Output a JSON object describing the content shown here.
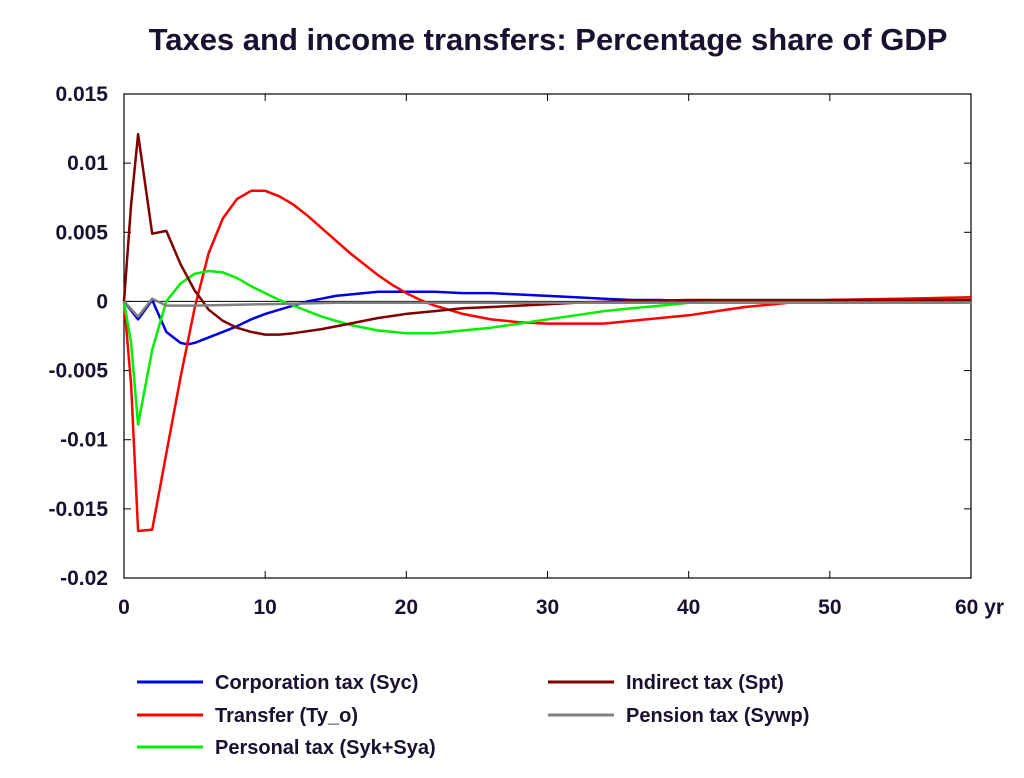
{
  "chart_data": {
    "type": "line",
    "title": "Taxes and income transfers: Percentage share of GDP",
    "xlabel": "",
    "ylabel": "",
    "xlim": [
      0,
      60
    ],
    "ylim": [
      -0.02,
      0.015
    ],
    "x_ticks": [
      {
        "value": 0,
        "label": "0"
      },
      {
        "value": 10,
        "label": "10"
      },
      {
        "value": 20,
        "label": "20"
      },
      {
        "value": 30,
        "label": "30"
      },
      {
        "value": 40,
        "label": "40"
      },
      {
        "value": 50,
        "label": "50"
      },
      {
        "value": 60,
        "label": "60 yr"
      }
    ],
    "y_ticks": [
      {
        "value": 0.015,
        "label": "0.015"
      },
      {
        "value": 0.01,
        "label": "0.01"
      },
      {
        "value": 0.005,
        "label": "0.005"
      },
      {
        "value": 0,
        "label": "0"
      },
      {
        "value": -0.005,
        "label": "-0.005"
      },
      {
        "value": -0.01,
        "label": "-0.01"
      },
      {
        "value": -0.015,
        "label": "-0.015"
      },
      {
        "value": -0.02,
        "label": "-0.02"
      }
    ],
    "grid": false,
    "legend_position": "bottom",
    "series": [
      {
        "name": "Corporation tax (Syc)",
        "color": "#0000e0",
        "points": [
          [
            0,
            0
          ],
          [
            1,
            -0.0013
          ],
          [
            2,
            0.0001
          ],
          [
            3,
            -0.0022
          ],
          [
            4,
            -0.003
          ],
          [
            4.5,
            -0.0031
          ],
          [
            5,
            -0.003
          ],
          [
            6,
            -0.0026
          ],
          [
            7,
            -0.0022
          ],
          [
            8,
            -0.0018
          ],
          [
            9,
            -0.0013
          ],
          [
            10,
            -0.0009
          ],
          [
            11,
            -0.0006
          ],
          [
            12,
            -0.0003
          ],
          [
            13,
            0.0
          ],
          [
            14,
            0.0002
          ],
          [
            15,
            0.0004
          ],
          [
            16,
            0.0005
          ],
          [
            17,
            0.0006
          ],
          [
            18,
            0.0007
          ],
          [
            20,
            0.0007
          ],
          [
            22,
            0.0007
          ],
          [
            24,
            0.0006
          ],
          [
            26,
            0.0006
          ],
          [
            28,
            0.0005
          ],
          [
            30,
            0.0004
          ],
          [
            32,
            0.0003
          ],
          [
            34,
            0.0002
          ],
          [
            36,
            0.0001
          ],
          [
            38,
            0.0001
          ],
          [
            40,
            0.0
          ],
          [
            45,
            0.0
          ],
          [
            50,
            0.0
          ],
          [
            55,
            0.0
          ],
          [
            60,
            0.0
          ]
        ]
      },
      {
        "name": "Transfer (Ty_o)",
        "color": "#ff0000",
        "points": [
          [
            0,
            0
          ],
          [
            0.5,
            -0.006
          ],
          [
            1,
            -0.0166
          ],
          [
            2,
            -0.0165
          ],
          [
            3,
            -0.011
          ],
          [
            4,
            -0.0055
          ],
          [
            5,
            -0.0005
          ],
          [
            6,
            0.0035
          ],
          [
            7,
            0.006
          ],
          [
            8,
            0.0074
          ],
          [
            9,
            0.008
          ],
          [
            10,
            0.008
          ],
          [
            11,
            0.0076
          ],
          [
            12,
            0.007
          ],
          [
            13,
            0.0062
          ],
          [
            14,
            0.0053
          ],
          [
            15,
            0.0044
          ],
          [
            16,
            0.0035
          ],
          [
            17,
            0.0027
          ],
          [
            18,
            0.0019
          ],
          [
            19,
            0.0012
          ],
          [
            20,
            0.0006
          ],
          [
            21,
            0.0001
          ],
          [
            22,
            -0.0003
          ],
          [
            24,
            -0.0009
          ],
          [
            26,
            -0.0013
          ],
          [
            28,
            -0.0015
          ],
          [
            30,
            -0.0016
          ],
          [
            32,
            -0.0016
          ],
          [
            34,
            -0.0016
          ],
          [
            36,
            -0.0014
          ],
          [
            38,
            -0.0012
          ],
          [
            40,
            -0.001
          ],
          [
            42,
            -0.0007
          ],
          [
            44,
            -0.0004
          ],
          [
            46,
            -0.0002
          ],
          [
            48,
            0.0
          ],
          [
            50,
            0.0001
          ],
          [
            55,
            0.0002
          ],
          [
            60,
            0.0003
          ]
        ]
      },
      {
        "name": "Personal tax (Syk+Sya)",
        "color": "#00ee00",
        "points": [
          [
            0,
            0
          ],
          [
            0.5,
            -0.003
          ],
          [
            1,
            -0.0089
          ],
          [
            2,
            -0.0035
          ],
          [
            3,
            0.0
          ],
          [
            4,
            0.0013
          ],
          [
            5,
            0.002
          ],
          [
            6,
            0.0022
          ],
          [
            7,
            0.0021
          ],
          [
            8,
            0.0017
          ],
          [
            9,
            0.0011
          ],
          [
            10,
            0.0006
          ],
          [
            11,
            0.0001
          ],
          [
            12,
            -0.0003
          ],
          [
            14,
            -0.0011
          ],
          [
            16,
            -0.0017
          ],
          [
            18,
            -0.0021
          ],
          [
            20,
            -0.0023
          ],
          [
            22,
            -0.0023
          ],
          [
            24,
            -0.0021
          ],
          [
            26,
            -0.0019
          ],
          [
            28,
            -0.0016
          ],
          [
            30,
            -0.0013
          ],
          [
            32,
            -0.001
          ],
          [
            34,
            -0.0007
          ],
          [
            36,
            -0.0005
          ],
          [
            38,
            -0.0003
          ],
          [
            40,
            -0.0001
          ],
          [
            45,
            0.0
          ],
          [
            50,
            0.0
          ],
          [
            55,
            0.0
          ],
          [
            60,
            0.0
          ]
        ]
      },
      {
        "name": "Indirect tax (Spt)",
        "color": "#800000",
        "points": [
          [
            0,
            0
          ],
          [
            0.5,
            0.007
          ],
          [
            1,
            0.0121
          ],
          [
            2,
            0.0049
          ],
          [
            3,
            0.0051
          ],
          [
            4,
            0.0027
          ],
          [
            5,
            0.0008
          ],
          [
            6,
            -0.0006
          ],
          [
            7,
            -0.0014
          ],
          [
            8,
            -0.0019
          ],
          [
            9,
            -0.0022
          ],
          [
            10,
            -0.0024
          ],
          [
            11,
            -0.0024
          ],
          [
            12,
            -0.0023
          ],
          [
            14,
            -0.002
          ],
          [
            16,
            -0.0016
          ],
          [
            18,
            -0.0012
          ],
          [
            20,
            -0.0009
          ],
          [
            22,
            -0.0007
          ],
          [
            24,
            -0.0005
          ],
          [
            26,
            -0.0004
          ],
          [
            28,
            -0.0003
          ],
          [
            30,
            -0.0002
          ],
          [
            32,
            -0.0001
          ],
          [
            35,
            0.0
          ],
          [
            40,
            0.0001
          ],
          [
            45,
            0.0001
          ],
          [
            50,
            0.0001
          ],
          [
            55,
            0.0001
          ],
          [
            60,
            0.0001
          ]
        ]
      },
      {
        "name": "Pension tax (Sywp)",
        "color": "#808080",
        "points": [
          [
            0,
            0
          ],
          [
            1,
            -0.0011
          ],
          [
            2,
            0.0002
          ],
          [
            3,
            -0.0003
          ],
          [
            5,
            -0.0003
          ],
          [
            10,
            -0.0002
          ],
          [
            15,
            -0.0001
          ],
          [
            20,
            -0.0001
          ],
          [
            30,
            -0.0001
          ],
          [
            40,
            -0.0001
          ],
          [
            50,
            -0.0001
          ],
          [
            60,
            -0.0001
          ]
        ]
      }
    ]
  }
}
